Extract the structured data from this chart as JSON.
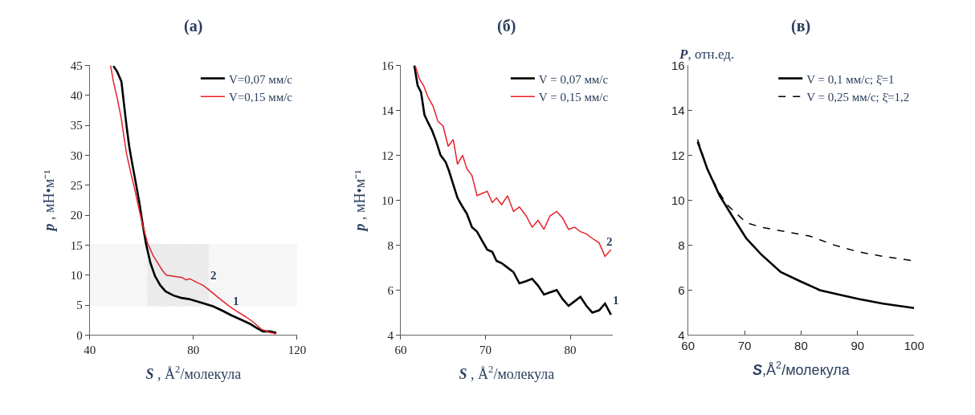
{
  "chart_data": [
    {
      "type": "line",
      "title": "(а)",
      "xlabel": "S , Å$^{2}$/молекула",
      "ylabel": "p , мН•м⁻¹",
      "xlim": [
        40,
        120
      ],
      "xticks": [
        40,
        80,
        120
      ],
      "ylim": [
        0,
        45
      ],
      "yticks": [
        0,
        5,
        10,
        15,
        20,
        25,
        30,
        35,
        40,
        45
      ],
      "grid": false,
      "legend": "top right",
      "line_style": "solid",
      "series": [
        {
          "name": "V=0,07 мм/с",
          "color": "#000000",
          "x": [
            49.1,
            50.5,
            52.2,
            53.2,
            54.2,
            55.2,
            56.2,
            57.7,
            59.2,
            60.5,
            61.7,
            63.4,
            65.2,
            67.2,
            69.2,
            72.3,
            75.3,
            78.3,
            81.4,
            84.5,
            87.5,
            91.0,
            94.6,
            98.2,
            101.7,
            104.3,
            106.8,
            109.4,
            112
          ],
          "values": [
            44.9,
            44.0,
            42.3,
            38.5,
            34.8,
            31.5,
            29.0,
            25.5,
            21.9,
            18.2,
            15.2,
            12.0,
            9.8,
            8.3,
            7.3,
            6.6,
            6.2,
            6.0,
            5.6,
            5.2,
            4.8,
            4.1,
            3.3,
            2.6,
            1.9,
            1.2,
            0.6,
            0.6,
            0.4
          ]
        },
        {
          "name": "V=0,15 мм/с",
          "color": "#e8202a",
          "x": [
            48.0,
            49.1,
            50.6,
            52.2,
            53.2,
            54.2,
            55.7,
            57.3,
            58.8,
            60.3,
            62.4,
            64.4,
            66.4,
            68.0,
            69.5,
            72.5,
            75.6,
            77.1,
            78.6,
            81.2,
            83.7,
            85.8,
            87.8,
            90.9,
            93.9,
            97.0,
            100,
            103.0,
            106.1,
            109.0,
            112
          ],
          "values": [
            45.0,
            42.3,
            39.5,
            36.0,
            33.0,
            30.2,
            27.3,
            24.4,
            21.4,
            18.5,
            15.2,
            13.3,
            11.9,
            10.8,
            10.0,
            9.8,
            9.6,
            9.2,
            9.4,
            8.8,
            8.3,
            7.6,
            6.9,
            5.8,
            4.8,
            3.9,
            3.1,
            2.2,
            1.0,
            0.5,
            0.2
          ]
        }
      ],
      "annotations": [
        {
          "text": "2",
          "x": 85.8,
          "y": 7.6
        },
        {
          "text": "1",
          "x": 94.6,
          "y": 3.3
        }
      ],
      "bands": [
        {
          "axis": "x",
          "from": 62.2,
          "to": 85.8,
          "color": "#555555"
        },
        {
          "axis": "y",
          "from": 4.8,
          "to": 15.2,
          "color": "#555555"
        }
      ]
    },
    {
      "type": "line",
      "title": "(б)",
      "xlabel": "S , Å$^{2}$/молекула",
      "ylabel": "p , мН•м⁻¹",
      "xlim": [
        60,
        85
      ],
      "xticks": [
        60,
        70,
        80
      ],
      "ylim": [
        4,
        16
      ],
      "yticks": [
        4,
        6,
        8,
        10,
        12,
        14,
        16
      ],
      "grid": false,
      "legend": "top right",
      "line_style": "solid",
      "series": [
        {
          "name": "V = 0,07 мм/с",
          "color": "#000000",
          "x": [
            61.6,
            62.0,
            62.4,
            62.8,
            63.3,
            63.7,
            64.2,
            64.7,
            65.3,
            65.7,
            66.2,
            66.7,
            67.3,
            67.8,
            68.4,
            69.0,
            69.6,
            70.2,
            70.8,
            71.3,
            71.9,
            72.6,
            73.3,
            74.0,
            74.8,
            75.5,
            76.2,
            76.9,
            77.6,
            78.4,
            79.1,
            79.8,
            80.5,
            81.2,
            81.9,
            82.6,
            83.4,
            84.1,
            84.8
          ],
          "values": [
            16.0,
            15.1,
            14.8,
            13.8,
            13.4,
            13.1,
            12.6,
            12.0,
            11.7,
            11.3,
            10.7,
            10.1,
            9.7,
            9.4,
            8.8,
            8.6,
            8.2,
            7.8,
            7.7,
            7.3,
            7.2,
            7.0,
            6.8,
            6.3,
            6.4,
            6.5,
            6.2,
            5.8,
            5.9,
            6.0,
            5.6,
            5.3,
            5.5,
            5.7,
            5.3,
            5.0,
            5.1,
            5.4,
            4.9
          ]
        },
        {
          "name": "V = 0,15 мм/с",
          "color": "#e8202a",
          "x": [
            61.7,
            62.2,
            62.7,
            63.2,
            63.8,
            64.4,
            65.0,
            65.6,
            66.2,
            66.7,
            67.3,
            67.8,
            68.4,
            69.0,
            69.6,
            70.2,
            70.8,
            71.3,
            71.9,
            72.6,
            73.3,
            74.0,
            74.8,
            75.5,
            76.2,
            76.9,
            77.6,
            78.4,
            79.1,
            79.8,
            80.5,
            81.2,
            81.9,
            82.6,
            83.4,
            84.1,
            84.8
          ],
          "values": [
            16.0,
            15.4,
            15.1,
            14.6,
            14.2,
            13.5,
            13.3,
            12.4,
            12.7,
            11.6,
            12.0,
            11.4,
            11.1,
            10.2,
            10.3,
            10.4,
            9.9,
            10.1,
            9.8,
            10.2,
            9.5,
            9.7,
            9.3,
            8.8,
            9.1,
            8.7,
            9.3,
            9.5,
            9.2,
            8.7,
            8.8,
            8.6,
            8.5,
            8.3,
            8.1,
            7.5,
            7.8
          ]
        }
      ],
      "annotations": [
        {
          "text": "2",
          "x": 84.1,
          "y": 7.5
        },
        {
          "text": "1",
          "x": 84.8,
          "y": 4.9
        }
      ]
    },
    {
      "type": "line",
      "title": "(в)",
      "xlabel": "S,Å$^{2}$/молекула",
      "ylabel": "P, отн.ед.",
      "xlim": [
        60,
        100
      ],
      "xticks": [
        60,
        70,
        80,
        90,
        100
      ],
      "ylim": [
        4,
        16
      ],
      "yticks": [
        4,
        6,
        8,
        10,
        12,
        14,
        16
      ],
      "grid": false,
      "legend": "top right",
      "series": [
        {
          "name": "V = 0,1 мм/с; ξ̇=1",
          "color": "#000000",
          "line_style": "solid",
          "x": [
            61.7,
            63.4,
            65.6,
            67.8,
            70.3,
            72.9,
            76.4,
            79.8,
            83.3,
            86.7,
            90.2,
            94.5,
            100
          ],
          "values": [
            12.6,
            11.4,
            10.2,
            9.3,
            8.3,
            7.6,
            6.8,
            6.4,
            6.0,
            5.8,
            5.6,
            5.4,
            5.2
          ]
        },
        {
          "name": "V = 0,25 мм/с; ξ̇=1,2",
          "color": "#000000",
          "line_style": "dashed",
          "x": [
            61.7,
            63.4,
            65.6,
            66.9,
            68.6,
            70.3,
            72.9,
            77.3,
            81.6,
            85.9,
            90.2,
            94.5,
            100
          ],
          "values": [
            12.7,
            11.4,
            10.3,
            9.8,
            9.4,
            9.0,
            8.8,
            8.6,
            8.4,
            8.0,
            7.7,
            7.5,
            7.3
          ]
        }
      ]
    }
  ]
}
